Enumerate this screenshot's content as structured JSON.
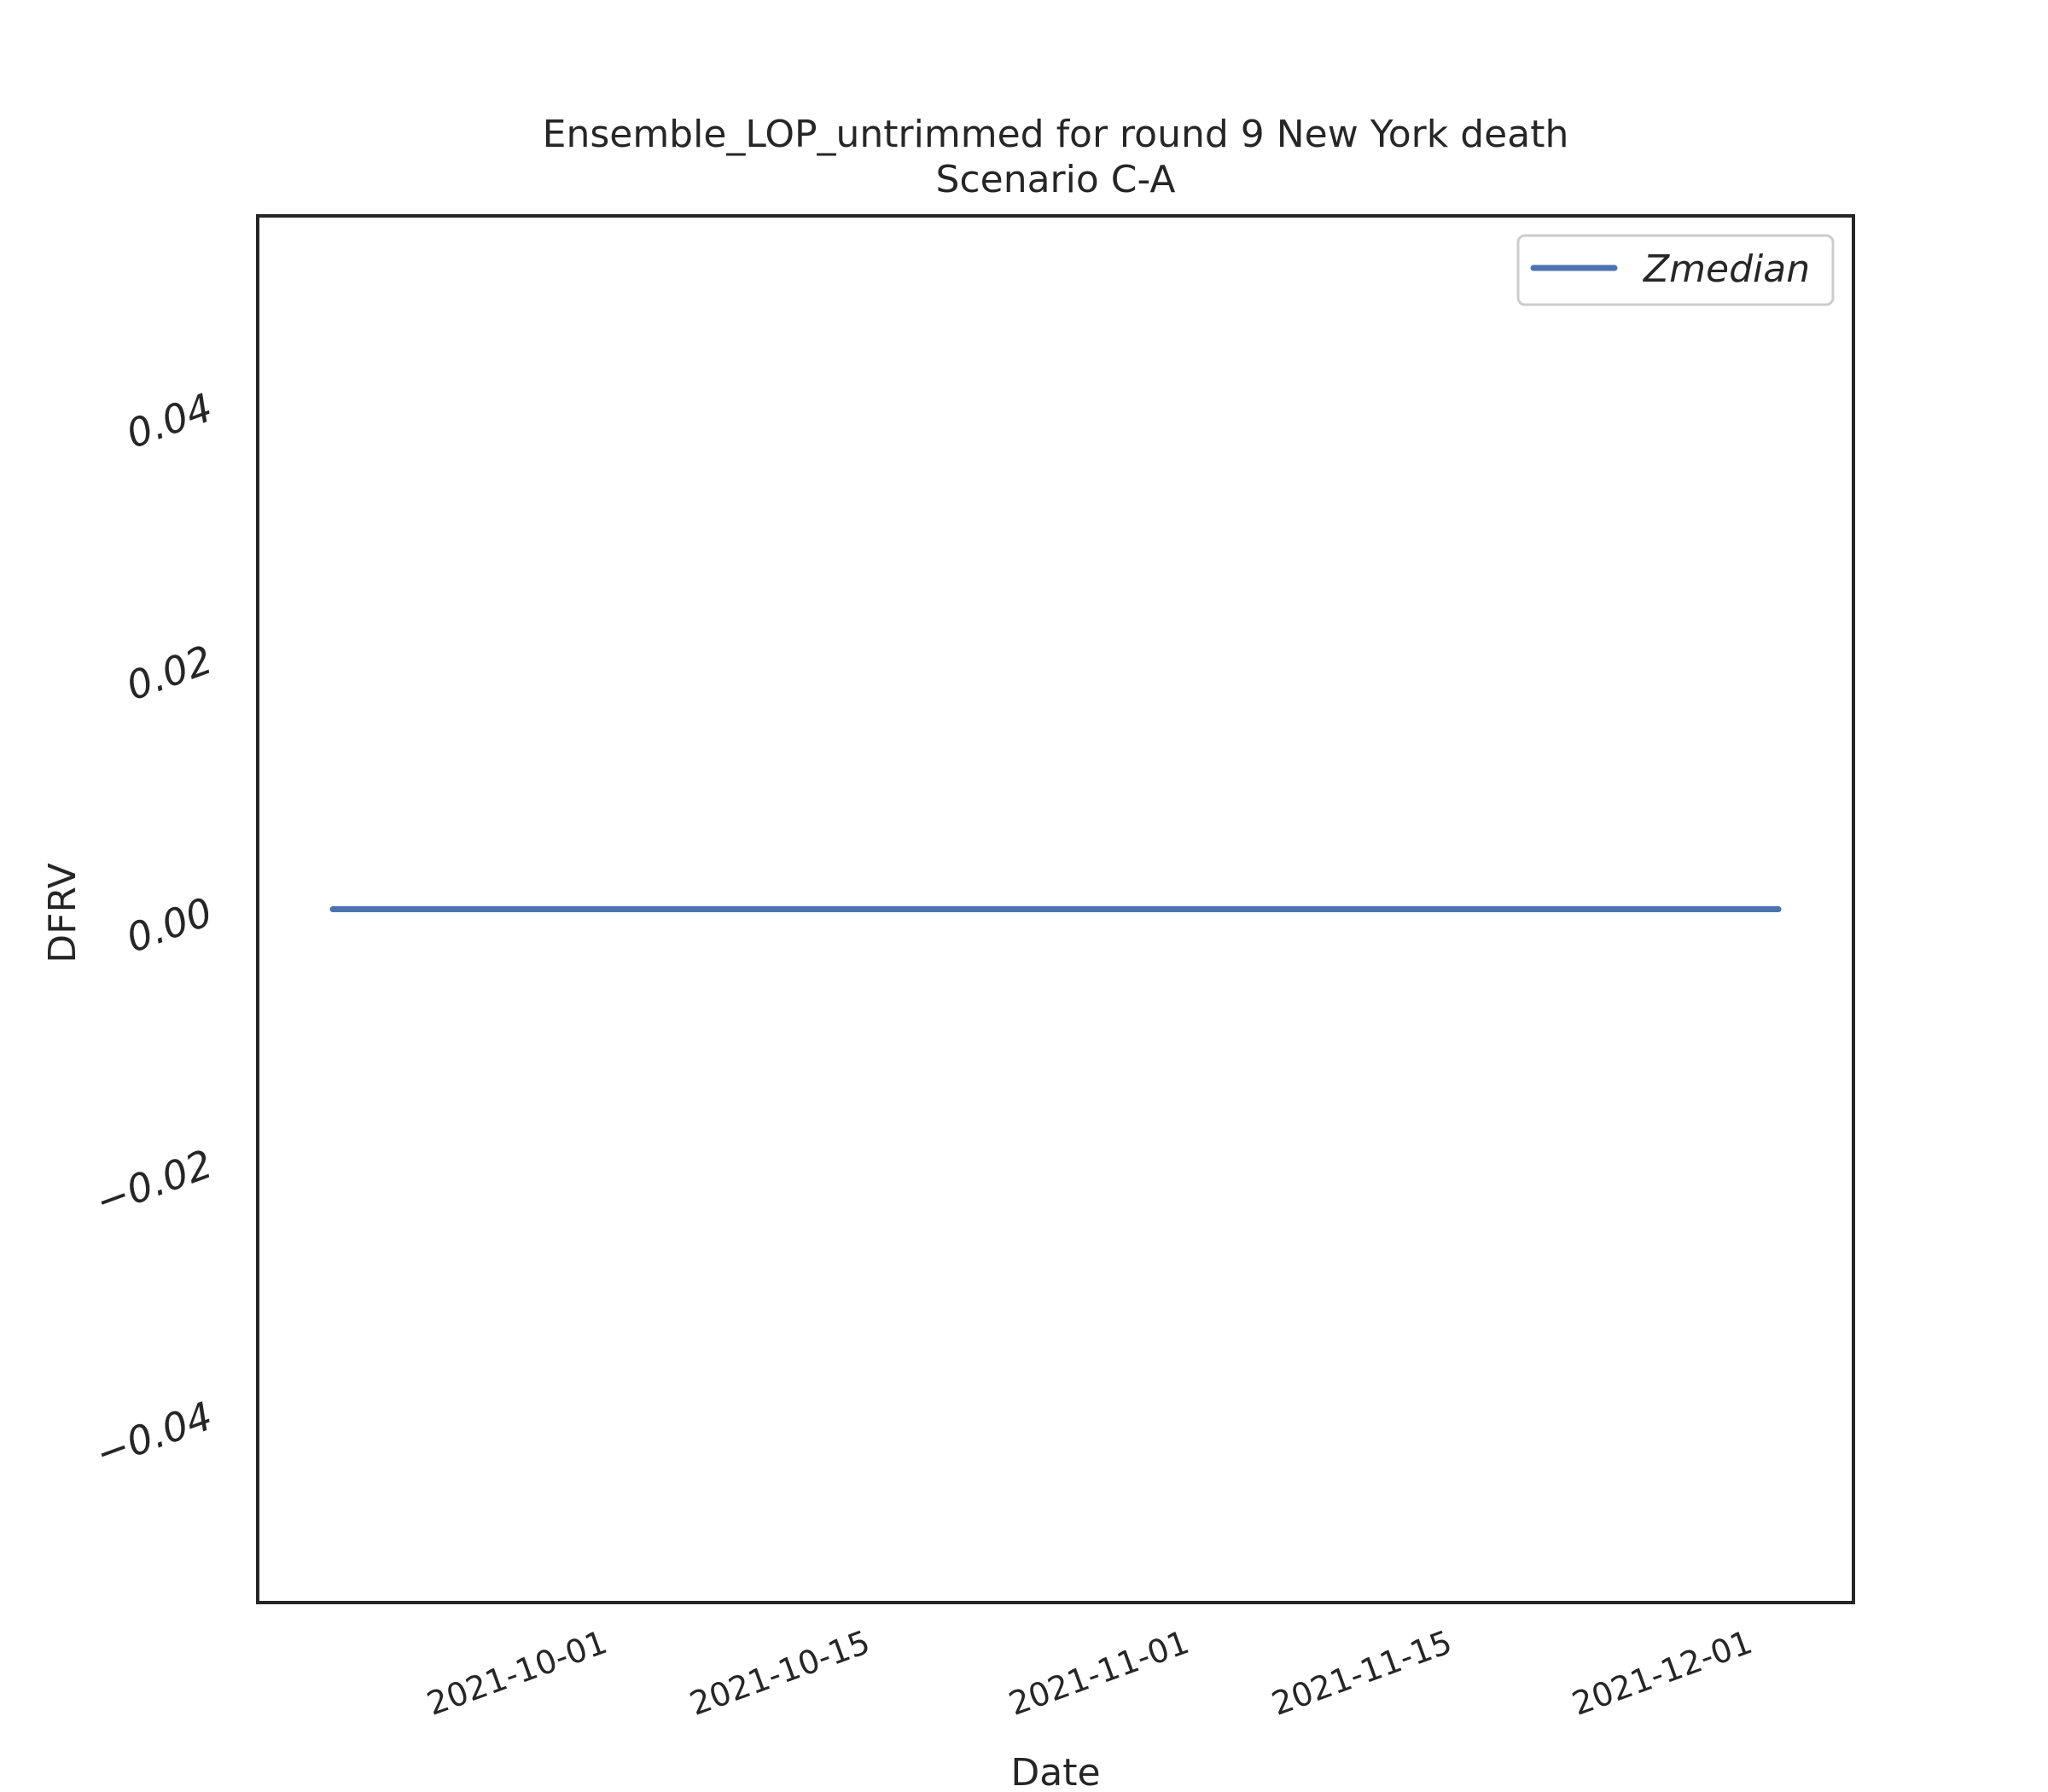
{
  "chart_data": {
    "type": "line",
    "title": "Ensemble_LOP_untrimmed for round 9 New York death",
    "subtitle": "Scenario C-A",
    "xlabel": "Date",
    "ylabel": "DFRV",
    "x_start": "2021-09-18",
    "x_end": "2021-12-04",
    "xlim": [
      "2021-09-14",
      "2021-12-08"
    ],
    "ylim": [
      -0.055,
      0.055
    ],
    "x_ticks": [
      "2021-10-01",
      "2021-10-15",
      "2021-11-01",
      "2021-11-15",
      "2021-12-01"
    ],
    "y_ticks": [
      {
        "value": 0.04,
        "label": "0.04"
      },
      {
        "value": 0.02,
        "label": "0.02"
      },
      {
        "value": 0.0,
        "label": "0.00"
      },
      {
        "value": -0.02,
        "label": "−0.02"
      },
      {
        "value": -0.04,
        "label": "−0.04"
      }
    ],
    "series": [
      {
        "name": "Zmedian",
        "color": "#4c72b0",
        "x": [
          "2021-09-18",
          "2021-12-04"
        ],
        "y": [
          0.0,
          0.0
        ]
      }
    ],
    "legend": {
      "position": "top-right",
      "entries": [
        "Zmedian"
      ]
    },
    "grid": false
  }
}
